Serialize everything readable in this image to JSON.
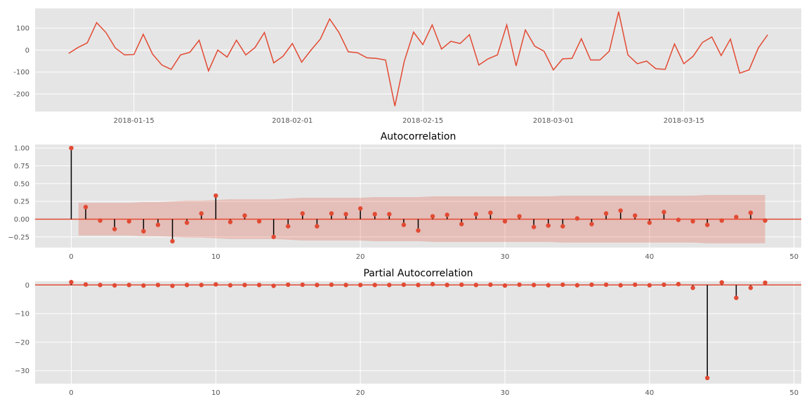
{
  "colors": {
    "background": "#e5e5e5",
    "grid": "#ffffff",
    "line": "#e24a33",
    "stem": "#000000",
    "band": "#e24a33",
    "marker": "#e24a33"
  },
  "chart_data": [
    {
      "type": "line",
      "title": "",
      "xlabel": "",
      "ylabel": "",
      "grid": true,
      "x_start": "2018-01-08",
      "x_step": "1 day",
      "x_tick_labels": [
        "2018-01-15",
        "2018-02-01",
        "2018-02-15",
        "2018-03-01",
        "2018-03-15"
      ],
      "y_ticks": [
        -200,
        -100,
        0,
        100
      ],
      "ylim": [
        -280,
        190
      ],
      "x_dates": [
        "2018-01-08",
        "2018-01-09",
        "2018-01-10",
        "2018-01-11",
        "2018-01-12",
        "2018-01-13",
        "2018-01-14",
        "2018-01-15",
        "2018-01-16",
        "2018-01-17",
        "2018-01-18",
        "2018-01-19",
        "2018-01-20",
        "2018-01-21",
        "2018-01-22",
        "2018-01-23",
        "2018-01-24",
        "2018-01-25",
        "2018-01-26",
        "2018-01-27",
        "2018-01-28",
        "2018-01-29",
        "2018-01-30",
        "2018-01-31",
        "2018-02-01",
        "2018-02-02",
        "2018-02-03",
        "2018-02-04",
        "2018-02-05",
        "2018-02-06",
        "2018-02-07",
        "2018-02-08",
        "2018-02-09",
        "2018-02-10",
        "2018-02-11",
        "2018-02-12",
        "2018-02-13",
        "2018-02-14",
        "2018-02-15",
        "2018-02-16",
        "2018-02-17",
        "2018-02-18",
        "2018-02-19",
        "2018-02-20",
        "2018-02-21",
        "2018-02-22",
        "2018-02-23",
        "2018-02-24",
        "2018-02-25",
        "2018-02-26",
        "2018-02-27",
        "2018-02-28",
        "2018-03-01",
        "2018-03-02",
        "2018-03-03",
        "2018-03-04",
        "2018-03-05",
        "2018-03-06",
        "2018-03-07",
        "2018-03-08",
        "2018-03-09",
        "2018-03-10",
        "2018-03-11",
        "2018-03-12",
        "2018-03-13",
        "2018-03-14",
        "2018-03-15",
        "2018-03-16",
        "2018-03-17",
        "2018-03-18",
        "2018-03-19",
        "2018-03-20",
        "2018-03-21",
        "2018-03-22",
        "2018-03-23",
        "2018-03-24"
      ],
      "values": [
        -15,
        12,
        33,
        125,
        80,
        10,
        -22,
        -20,
        72,
        -18,
        -68,
        -88,
        -22,
        -10,
        45,
        -95,
        0,
        -32,
        45,
        -22,
        12,
        80,
        -58,
        -28,
        30,
        -55,
        0,
        50,
        142,
        80,
        -8,
        -12,
        -35,
        -38,
        -45,
        -255,
        -52,
        82,
        25,
        115,
        5,
        40,
        30,
        70,
        -68,
        -40,
        -22,
        115,
        -72,
        92,
        18,
        -5,
        -90,
        -40,
        -38,
        52,
        -45,
        -45,
        -5,
        175,
        -22,
        -62,
        -50,
        -85,
        -88,
        28,
        -62,
        -28,
        35,
        60,
        -25,
        50,
        -105,
        -90,
        10,
        70
      ]
    },
    {
      "type": "bar",
      "title": "Autocorrelation",
      "xlabel": "",
      "ylabel": "",
      "grid": true,
      "xlim": [
        -2.5,
        50.5
      ],
      "ylim": [
        -0.4,
        1.05
      ],
      "x_ticks": [
        0,
        10,
        20,
        30,
        40,
        50
      ],
      "y_ticks": [
        -0.25,
        0.0,
        0.25,
        0.5,
        0.75,
        1.0
      ],
      "y_tick_labels": [
        "−0.25",
        "0.00",
        "0.25",
        "0.50",
        "0.75",
        "1.00"
      ],
      "lags": [
        0,
        1,
        2,
        3,
        4,
        5,
        6,
        7,
        8,
        9,
        10,
        11,
        12,
        13,
        14,
        15,
        16,
        17,
        18,
        19,
        20,
        21,
        22,
        23,
        24,
        25,
        26,
        27,
        28,
        29,
        30,
        31,
        32,
        33,
        34,
        35,
        36,
        37,
        38,
        39,
        40,
        41,
        42,
        43,
        44,
        45,
        46,
        47,
        48
      ],
      "values": [
        1.0,
        0.17,
        -0.02,
        -0.14,
        -0.03,
        -0.17,
        -0.08,
        -0.31,
        -0.05,
        0.08,
        0.33,
        -0.04,
        0.05,
        -0.03,
        -0.25,
        -0.1,
        0.08,
        -0.1,
        0.08,
        0.07,
        0.15,
        0.07,
        0.07,
        -0.08,
        -0.16,
        0.04,
        0.06,
        -0.07,
        0.07,
        0.09,
        -0.03,
        0.04,
        -0.11,
        -0.09,
        -0.1,
        0.01,
        -0.07,
        0.08,
        0.12,
        0.05,
        -0.05,
        0.1,
        -0.01,
        -0.03,
        -0.08,
        -0.02,
        0.03,
        0.09,
        -0.02
      ],
      "confint_upper": [
        0.23,
        0.23,
        0.23,
        0.23,
        0.23,
        0.24,
        0.24,
        0.25,
        0.26,
        0.26,
        0.27,
        0.28,
        0.28,
        0.28,
        0.28,
        0.29,
        0.3,
        0.3,
        0.3,
        0.3,
        0.3,
        0.31,
        0.31,
        0.31,
        0.31,
        0.32,
        0.32,
        0.32,
        0.32,
        0.32,
        0.32,
        0.32,
        0.32,
        0.32,
        0.33,
        0.33,
        0.33,
        0.33,
        0.33,
        0.33,
        0.33,
        0.33,
        0.33,
        0.33,
        0.34,
        0.34,
        0.34,
        0.34,
        0.34
      ]
    },
    {
      "type": "bar",
      "title": "Partial Autocorrelation",
      "xlabel": "",
      "ylabel": "",
      "grid": true,
      "xlim": [
        -2.5,
        50.5
      ],
      "ylim": [
        -34.5,
        1.3
      ],
      "x_ticks": [
        0,
        10,
        20,
        30,
        40,
        50
      ],
      "y_ticks": [
        -30,
        -20,
        -10,
        0
      ],
      "y_tick_labels": [
        "−30",
        "−20",
        "−10",
        "0"
      ],
      "lags": [
        0,
        1,
        2,
        3,
        4,
        5,
        6,
        7,
        8,
        9,
        10,
        11,
        12,
        13,
        14,
        15,
        16,
        17,
        18,
        19,
        20,
        21,
        22,
        23,
        24,
        25,
        26,
        27,
        28,
        29,
        30,
        31,
        32,
        33,
        34,
        35,
        36,
        37,
        38,
        39,
        40,
        41,
        42,
        43,
        44,
        45,
        46,
        47,
        48
      ],
      "values": [
        1.0,
        0.17,
        0.0,
        -0.15,
        0.0,
        -0.2,
        0.0,
        -0.3,
        0.0,
        0.0,
        0.2,
        -0.1,
        0.0,
        0.0,
        -0.3,
        0.1,
        0.1,
        0.0,
        0.1,
        0.0,
        0.0,
        0.0,
        0.0,
        0.1,
        0.0,
        0.3,
        0.0,
        0.1,
        0.0,
        0.1,
        -0.2,
        0.1,
        0.0,
        -0.1,
        0.1,
        -0.1,
        0.1,
        0.1,
        -0.1,
        0.1,
        -0.1,
        0.1,
        0.3,
        -1.0,
        -32.5,
        0.9,
        -4.5,
        -1.0,
        0.8
      ]
    }
  ]
}
